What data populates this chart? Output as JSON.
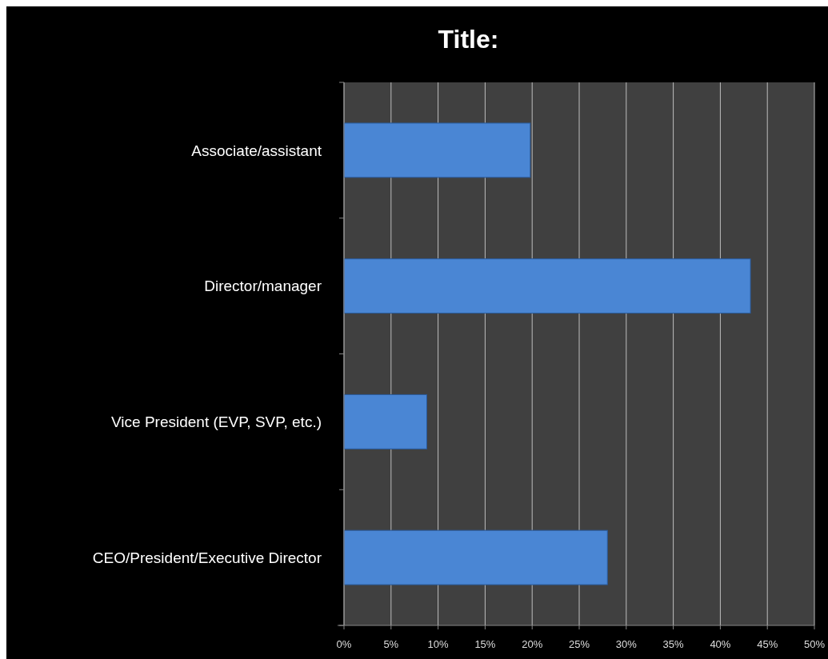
{
  "chart_data": {
    "type": "bar",
    "orientation": "horizontal",
    "title": "Title:",
    "categories": [
      "Associate/assistant",
      "Director/manager",
      "Vice President (EVP, SVP, etc.)",
      "CEO/President/Executive Director"
    ],
    "values": [
      19.8,
      43.2,
      8.8,
      28
    ],
    "color": "#4a86d4",
    "xlim": [
      0,
      50
    ],
    "xticks": [
      {
        "value": 0,
        "label": "0%"
      },
      {
        "value": 5,
        "label": "5%"
      },
      {
        "value": 10,
        "label": "10%"
      },
      {
        "value": 15,
        "label": "15%"
      },
      {
        "value": 20,
        "label": "20%"
      },
      {
        "value": 25,
        "label": "25%"
      },
      {
        "value": 30,
        "label": "30%"
      },
      {
        "value": 35,
        "label": "35%"
      },
      {
        "value": 40,
        "label": "40%"
      },
      {
        "value": 45,
        "label": "45%"
      },
      {
        "value": 50,
        "label": "50%"
      }
    ],
    "grid": "x"
  }
}
